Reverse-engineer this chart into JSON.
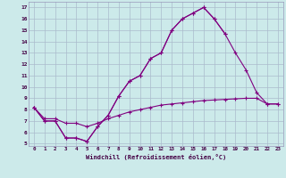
{
  "xlabel": "Windchill (Refroidissement éolien,°C)",
  "bg_color": "#cceaea",
  "line_color": "#800080",
  "grid_color": "#aabbcc",
  "xlim": [
    -0.5,
    23.5
  ],
  "ylim": [
    4.8,
    17.5
  ],
  "xticks": [
    0,
    1,
    2,
    3,
    4,
    5,
    6,
    7,
    8,
    9,
    10,
    11,
    12,
    13,
    14,
    15,
    16,
    17,
    18,
    19,
    20,
    21,
    22,
    23
  ],
  "yticks": [
    5,
    6,
    7,
    8,
    9,
    10,
    11,
    12,
    13,
    14,
    15,
    16,
    17
  ],
  "line1_x": [
    0,
    1,
    2,
    3,
    4,
    5,
    6,
    7,
    8,
    9,
    10,
    11,
    12,
    13,
    14,
    15,
    16,
    17,
    18
  ],
  "line1_y": [
    8.2,
    7.0,
    7.0,
    5.5,
    5.5,
    5.2,
    6.5,
    7.5,
    9.2,
    10.5,
    11.0,
    12.5,
    13.0,
    15.0,
    16.0,
    16.5,
    17.0,
    16.0,
    14.7
  ],
  "line2_x": [
    0,
    1,
    2,
    3,
    4,
    5,
    6,
    7,
    8,
    9,
    10,
    11,
    12,
    13,
    14,
    15,
    16,
    17,
    18,
    19,
    20,
    21,
    22,
    23
  ],
  "line2_y": [
    8.2,
    7.0,
    7.0,
    5.5,
    5.5,
    5.2,
    6.5,
    7.5,
    9.2,
    10.5,
    11.0,
    12.5,
    13.0,
    15.0,
    16.0,
    16.5,
    17.0,
    16.0,
    14.7,
    13.0,
    11.5,
    9.5,
    8.5,
    8.5
  ],
  "line3_x": [
    0,
    1,
    2,
    3,
    4,
    5,
    6,
    7,
    8,
    9,
    10,
    11,
    12,
    13,
    14,
    15,
    16,
    17,
    18,
    19,
    20,
    21,
    22,
    23
  ],
  "line3_y": [
    8.2,
    7.2,
    7.2,
    6.8,
    6.8,
    6.5,
    6.8,
    7.2,
    7.5,
    7.8,
    8.0,
    8.2,
    8.4,
    8.5,
    8.6,
    8.7,
    8.8,
    8.85,
    8.9,
    8.95,
    9.0,
    9.0,
    8.5,
    8.5
  ]
}
